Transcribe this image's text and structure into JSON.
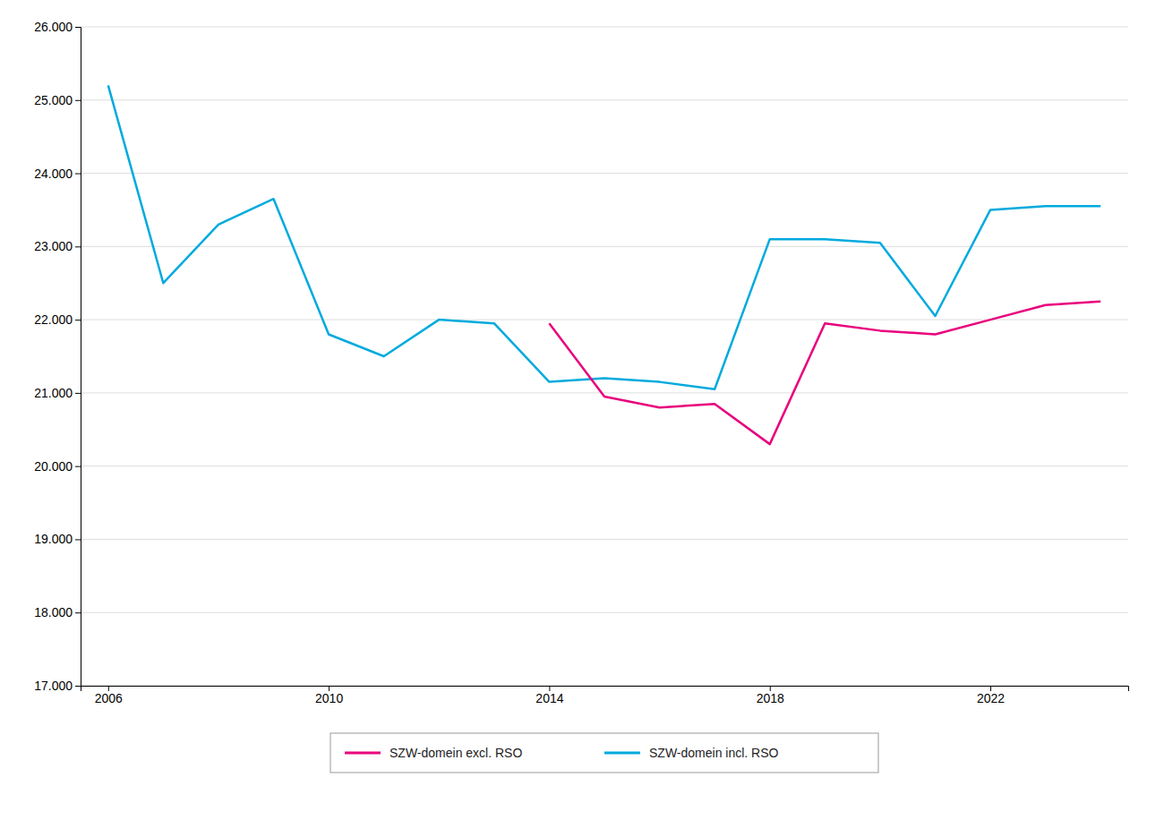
{
  "chart_data": {
    "type": "line",
    "x": [
      2006,
      2007,
      2008,
      2009,
      2010,
      2011,
      2012,
      2013,
      2014,
      2015,
      2016,
      2017,
      2018,
      2019,
      2020,
      2021,
      2022,
      2023,
      2024
    ],
    "series": [
      {
        "name": "SZW-domein excl. RSO",
        "color": "#E8007D",
        "values": [
          null,
          null,
          null,
          null,
          null,
          null,
          null,
          null,
          21950,
          20950,
          20800,
          20850,
          20300,
          21950,
          21850,
          21800,
          22000,
          22200,
          22250
        ]
      },
      {
        "name": "SZW-domein incl. RSO",
        "color": "#00AADD",
        "values": [
          25200,
          22500,
          23300,
          23650,
          21800,
          21500,
          22000,
          21950,
          21150,
          21200,
          21150,
          21050,
          23100,
          23100,
          23050,
          22050,
          23500,
          23550,
          23550
        ]
      }
    ],
    "xlim": [
      2005.5,
      2024.5
    ],
    "xticks": [
      2006,
      2010,
      2014,
      2018,
      2022
    ],
    "ylim": [
      17000,
      26000
    ],
    "yticks": [
      {
        "value": 17000,
        "label": "17.000"
      },
      {
        "value": 18000,
        "label": "18.000"
      },
      {
        "value": 19000,
        "label": "19.000"
      },
      {
        "value": 20000,
        "label": "20.000"
      },
      {
        "value": 21000,
        "label": "21.000"
      },
      {
        "value": 22000,
        "label": "22.000"
      },
      {
        "value": 23000,
        "label": "23.000"
      },
      {
        "value": 24000,
        "label": "24.000"
      },
      {
        "value": 25000,
        "label": "25.000"
      },
      {
        "value": 26000,
        "label": "26.000"
      }
    ],
    "grid": true,
    "legend": "bottom"
  }
}
